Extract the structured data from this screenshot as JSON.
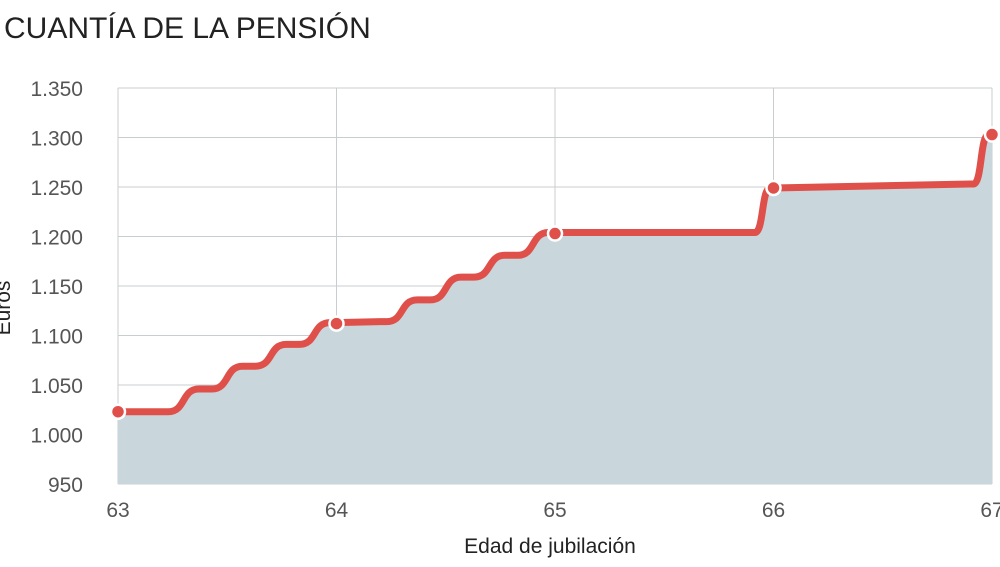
{
  "chart_data": {
    "type": "area",
    "title": "CUANTÍA DE LA PENSIÓN",
    "xlabel": "Edad de jubilación",
    "ylabel": "Euros",
    "xlim": [
      63,
      67
    ],
    "ylim": [
      950,
      1350
    ],
    "x_ticks": [
      "63",
      "64",
      "65",
      "66",
      "67"
    ],
    "y_ticks": [
      "950",
      "1.000",
      "1.050",
      "1.100",
      "1.150",
      "1.200",
      "1.250",
      "1.300",
      "1.350"
    ],
    "grid": true,
    "series": [
      {
        "type": "line",
        "x": [
          63,
          63.2,
          63.4,
          63.6,
          63.8,
          64,
          64.2,
          64.4,
          64.6,
          64.8,
          65,
          65.9,
          66,
          66.9,
          67
        ],
        "values": [
          1023,
          1023,
          1046,
          1069,
          1091,
          1113,
          1114,
          1136,
          1159,
          1181,
          1204,
          1204,
          1249,
          1253,
          1303
        ]
      }
    ],
    "markers": [
      {
        "x": 63,
        "y": 1023
      },
      {
        "x": 64,
        "y": 1112
      },
      {
        "x": 65,
        "y": 1203
      },
      {
        "x": 66,
        "y": 1249
      },
      {
        "x": 67,
        "y": 1303
      }
    ],
    "colors": {
      "line": "#e0504a",
      "fill": "#c9d7dd",
      "grid": "#c8cdd0",
      "marker_stroke": "#ffffff"
    }
  }
}
